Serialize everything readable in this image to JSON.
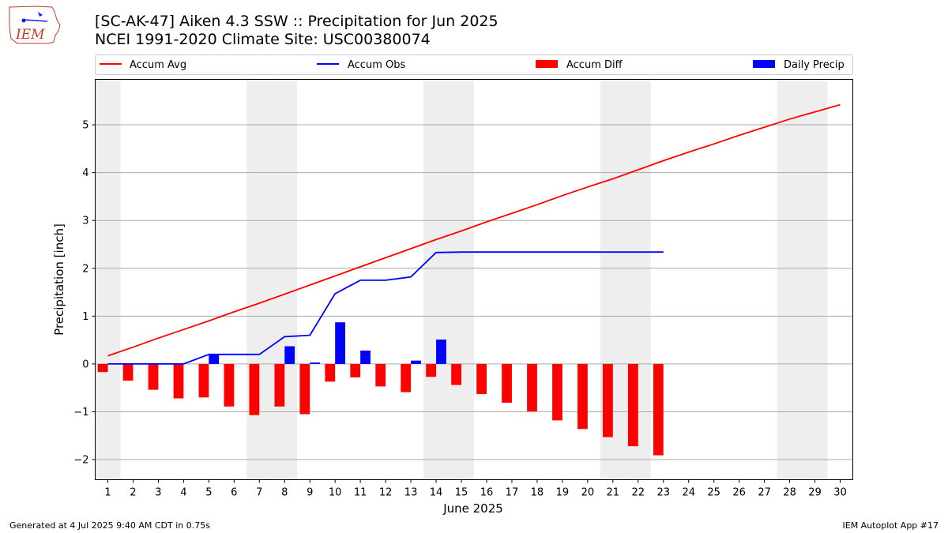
{
  "header": {
    "title_line1": "[SC-AK-47] Aiken 4.3 SSW :: Precipitation for Jun 2025",
    "title_line2": "NCEI 1991-2020 Climate Site: USC00380074",
    "logo_text": "IEM"
  },
  "footer": {
    "left": "Generated at 4 Jul 2025 9:40 AM CDT in 0.75s",
    "right": "IEM Autoplot App #17"
  },
  "colors": {
    "accum_avg": "#ff0000",
    "accum_obs": "#0000ff",
    "accum_diff": "#ff0000",
    "daily_precip": "#0000ff",
    "weekend_shade": "#eeeeee",
    "grid": "#aaaaaa"
  },
  "chart_data": {
    "type": "bar",
    "xlabel": "June 2025",
    "ylabel": "Precipitation [inch]",
    "ylim": [
      -2.42,
      5.95
    ],
    "xlim": [
      0.5,
      30.5
    ],
    "yticks": [
      -2,
      -1,
      0,
      1,
      2,
      3,
      4,
      5
    ],
    "ytick_labels": [
      "−2",
      "−1",
      "0",
      "1",
      "2",
      "3",
      "4",
      "5"
    ],
    "grid": true,
    "legend_position": "top",
    "weekend_days": [
      1,
      7,
      8,
      14,
      15,
      21,
      22,
      28,
      29
    ],
    "days": [
      1,
      2,
      3,
      4,
      5,
      6,
      7,
      8,
      9,
      10,
      11,
      12,
      13,
      14,
      15,
      16,
      17,
      18,
      19,
      20,
      21,
      22,
      23,
      24,
      25,
      26,
      27,
      28,
      29,
      30
    ],
    "series": [
      {
        "name": "Accum Avg",
        "kind": "line",
        "values": [
          0.17,
          0.35,
          0.54,
          0.72,
          0.9,
          1.09,
          1.27,
          1.46,
          1.65,
          1.84,
          2.03,
          2.22,
          2.41,
          2.6,
          2.78,
          2.97,
          3.15,
          3.33,
          3.52,
          3.7,
          3.87,
          4.06,
          4.25,
          4.43,
          4.6,
          4.78,
          4.95,
          5.12,
          5.27,
          5.42
        ]
      },
      {
        "name": "Accum Obs",
        "kind": "line",
        "values": [
          0.0,
          0.0,
          0.0,
          0.0,
          0.2,
          0.2,
          0.2,
          0.57,
          0.6,
          1.47,
          1.75,
          1.75,
          1.82,
          2.33,
          2.34,
          2.34,
          2.34,
          2.34,
          2.34,
          2.34,
          2.34,
          2.34,
          2.34
        ]
      },
      {
        "name": "Accum Diff",
        "kind": "bar",
        "values": [
          -0.17,
          -0.35,
          -0.54,
          -0.72,
          -0.7,
          -0.89,
          -1.07,
          -0.89,
          -1.05,
          -0.37,
          -0.28,
          -0.47,
          -0.59,
          -0.27,
          -0.44,
          -0.63,
          -0.81,
          -0.99,
          -1.18,
          -1.36,
          -1.53,
          -1.72,
          -1.91
        ]
      },
      {
        "name": "Daily Precip",
        "kind": "bar",
        "values": [
          0.0,
          0.0,
          0.0,
          0.0,
          0.2,
          0.0,
          0.0,
          0.37,
          0.03,
          0.87,
          0.28,
          0.0,
          0.07,
          0.51,
          0.0,
          0.0,
          0.0,
          0.0,
          0.0,
          0.0,
          0.0,
          0.0,
          0.0
        ]
      }
    ]
  }
}
